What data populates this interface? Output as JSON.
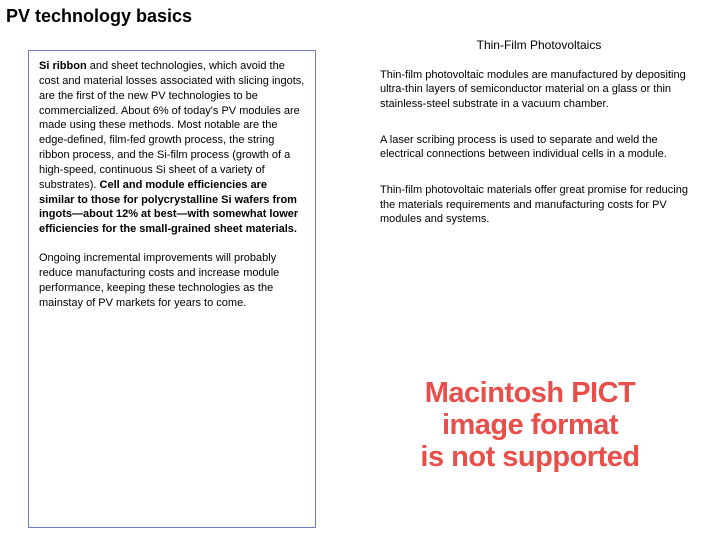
{
  "title": "PV technology basics",
  "left": {
    "p1_lead": "Si ribbon",
    "p1_rest": " and sheet technologies, which avoid the cost and material losses associated with slicing ingots, are the first of the new PV technologies to be commercialized. About 6% of today's PV modules are made using these methods. Most notable are the edge-defined, film-fed growth process, the string ribbon process, and the Si-film process (growth of a high-speed, continuous Si sheet of a variety of substrates). ",
    "p1_bold_tail": "Cell and module efficiencies are similar to those for polycrystalline Si wafers from ingots—about 12% at best—with somewhat lower efficiencies for the small-grained sheet materials.",
    "p2": "Ongoing incremental improvements will probably reduce manufacturing costs and increase module performance, keeping these technologies as the mainstay of PV markets for years to come."
  },
  "right": {
    "heading": "Thin-Film Photovoltaics",
    "p1": "Thin-film photovoltaic modules are manufactured by depositing ultra-thin layers of semiconductor material on a glass or thin stainless-steel substrate in a vacuum chamber.",
    "p2": " A laser scribing process is used to separate and weld the electrical connections between individual cells in a module.",
    "p3": "Thin-film photovoltaic materials offer great promise for reducing the materials requirements and manufacturing costs for PV modules and systems."
  },
  "pict": {
    "line1": "Macintosh PICT",
    "line2": "image format",
    "line3": "is not supported",
    "color": "#e94f4a"
  },
  "colors": {
    "box_border": "#6d7cbf",
    "text": "#000000",
    "background": "#ffffff"
  }
}
